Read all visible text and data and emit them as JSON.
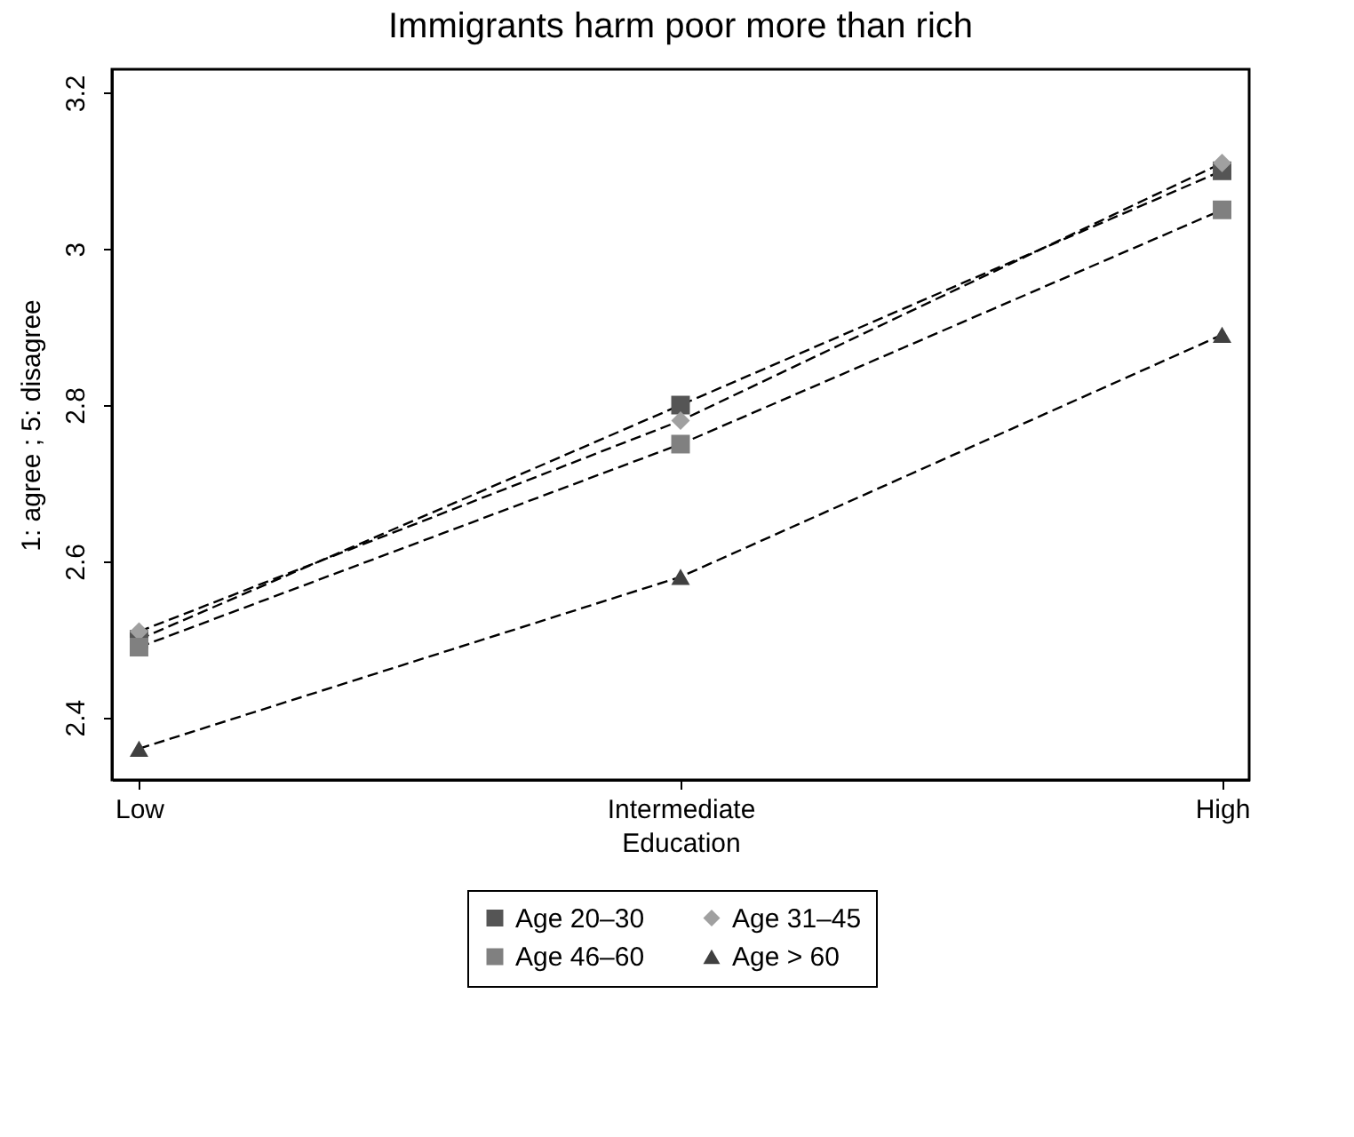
{
  "chart_data": {
    "type": "line",
    "title": "Immigrants harm poor more than rich",
    "xlabel": "Education",
    "ylabel": "1: agree ; 5: disagree",
    "categories": [
      "Low",
      "Intermediate",
      "High"
    ],
    "series": [
      {
        "name": "Age 20–30",
        "color": "#555555",
        "marker": "square",
        "line_style": "dashed",
        "values": [
          2.5,
          2.8,
          3.1
        ]
      },
      {
        "name": "Age 31–45",
        "color": "#a0a0a0",
        "marker": "diamond",
        "line_style": "dashed",
        "values": [
          2.51,
          2.78,
          3.11
        ]
      },
      {
        "name": "Age 46–60",
        "color": "#808080",
        "marker": "square",
        "line_style": "dashed",
        "values": [
          2.49,
          2.75,
          3.05
        ]
      },
      {
        "name": "Age > 60",
        "color": "#404040",
        "marker": "triangle",
        "line_style": "dashed",
        "values": [
          2.36,
          2.58,
          2.89
        ]
      }
    ],
    "ylim": [
      2.32,
      3.23
    ],
    "yticks": [
      2.4,
      2.6,
      2.8,
      {
        "value": 3,
        "label": "3"
      },
      3.2
    ],
    "grid": false,
    "legend": "bottom"
  }
}
